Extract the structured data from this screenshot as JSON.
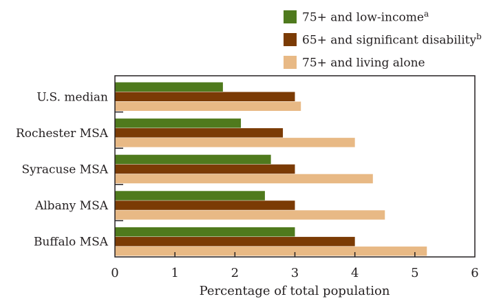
{
  "chart_data": {
    "type": "bar",
    "orientation": "horizontal",
    "categories": [
      "U.S. median",
      "Rochester MSA",
      "Syracuse MSA",
      "Albany MSA",
      "Buffalo MSA"
    ],
    "series": [
      {
        "name": "75+ and low-income",
        "superscript": "a",
        "color": "#4f7a1d",
        "values": [
          1.8,
          2.1,
          2.6,
          2.5,
          3.0
        ]
      },
      {
        "name": "65+ and significant disability",
        "superscript": "b",
        "color": "#7b3b05",
        "values": [
          3.0,
          2.8,
          3.0,
          3.0,
          4.0
        ]
      },
      {
        "name": "75+ and living alone",
        "superscript": "",
        "color": "#e8b985",
        "values": [
          3.1,
          4.0,
          4.3,
          4.5,
          5.2
        ]
      }
    ],
    "xlabel": "Percentage of total population",
    "xlim": [
      0,
      6
    ],
    "xticks": [
      0,
      1,
      2,
      3,
      4,
      5,
      6
    ],
    "grid": false,
    "legend_position": "top-right"
  }
}
